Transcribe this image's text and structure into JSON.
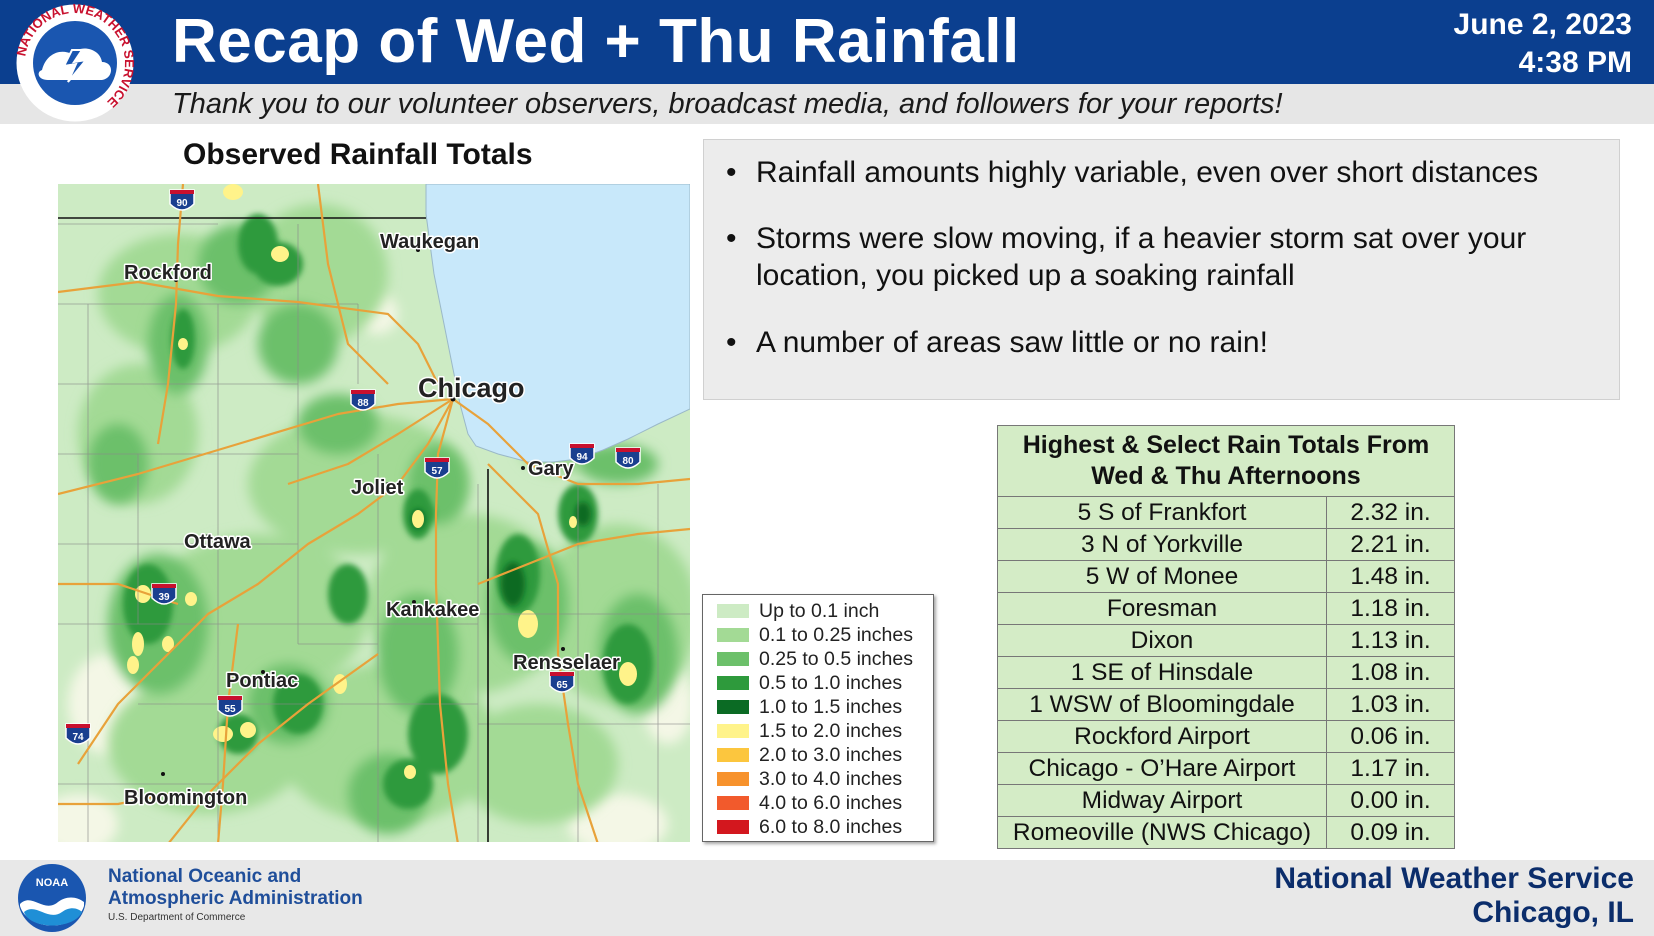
{
  "header": {
    "title": "Recap of Wed + Thu Rainfall",
    "date": "June 2, 2023",
    "time": "4:38 PM",
    "subtitle": "Thank you to our volunteer observers, broadcast media, and followers for your reports!",
    "logo_ring_text": "NATIONAL WEATHER SERVICE"
  },
  "map": {
    "title": "Observed Rainfall Totals",
    "cities": [
      "Rockford",
      "Waukegan",
      "Chicago",
      "Gary",
      "Joliet",
      "Ottawa",
      "Kankakee",
      "Rensselaer",
      "Pontiac",
      "Bloomington"
    ],
    "shields": [
      "90",
      "88",
      "57",
      "94",
      "80",
      "39",
      "65",
      "55",
      "74"
    ]
  },
  "legend": {
    "items": [
      {
        "label": "Up to 0.1 inch",
        "color": "#cdebc4"
      },
      {
        "label": "0.1 to 0.25 inches",
        "color": "#a3da95"
      },
      {
        "label": "0.25 to 0.5 inches",
        "color": "#6cc06a"
      },
      {
        "label": "0.5 to 1.0 inches",
        "color": "#2e9a3c"
      },
      {
        "label": "1.0 to 1.5 inches",
        "color": "#0b6b24"
      },
      {
        "label": "1.5 to 2.0 inches",
        "color": "#fff38a"
      },
      {
        "label": "2.0 to 3.0 inches",
        "color": "#fcc63e"
      },
      {
        "label": "3.0 to 4.0 inches",
        "color": "#f7922c"
      },
      {
        "label": "4.0 to 6.0 inches",
        "color": "#f25a2c"
      },
      {
        "label": "6.0 to 8.0 inches",
        "color": "#d3171e"
      }
    ]
  },
  "bullets": {
    "items": [
      "Rainfall amounts highly variable, even over short distances",
      "Storms were slow moving, if a heavier storm sat over your location, you picked up a soaking rainfall",
      "A number of areas saw little or no rain!"
    ]
  },
  "table": {
    "header": "Highest & Select Rain Totals From Wed & Thu Afternoons",
    "rows": [
      {
        "location": "5 S of Frankfort",
        "amount": "2.32 in."
      },
      {
        "location": "3 N of Yorkville",
        "amount": "2.21 in."
      },
      {
        "location": "5 W of Monee",
        "amount": "1.48 in."
      },
      {
        "location": "Foresman",
        "amount": "1.18 in."
      },
      {
        "location": "Dixon",
        "amount": "1.13 in."
      },
      {
        "location": "1 SE of Hinsdale",
        "amount": "1.08 in."
      },
      {
        "location": "1 WSW of Bloomingdale",
        "amount": "1.03 in."
      },
      {
        "location": "Rockford Airport",
        "amount": "0.06 in."
      },
      {
        "location": "Chicago - O’Hare Airport",
        "amount": "1.17 in."
      },
      {
        "location": "Midway Airport",
        "amount": "0.00 in."
      },
      {
        "location": "Romeoville (NWS Chicago)",
        "amount": "0.09 in."
      }
    ]
  },
  "footer": {
    "noaa_line1": "National Oceanic and",
    "noaa_line2": "Atmospheric Administration",
    "noaa_sub": "U.S. Department of Commerce",
    "noaa_logo_text": "NOAA",
    "nws_line1": "National Weather Service",
    "nws_line2": "Chicago, IL"
  },
  "colors": {
    "header_blue": "#0b3f8f",
    "lake_blue": "#c8e8fa",
    "road_orange": "#e8a23a",
    "table_green": "#d4ecc6"
  }
}
